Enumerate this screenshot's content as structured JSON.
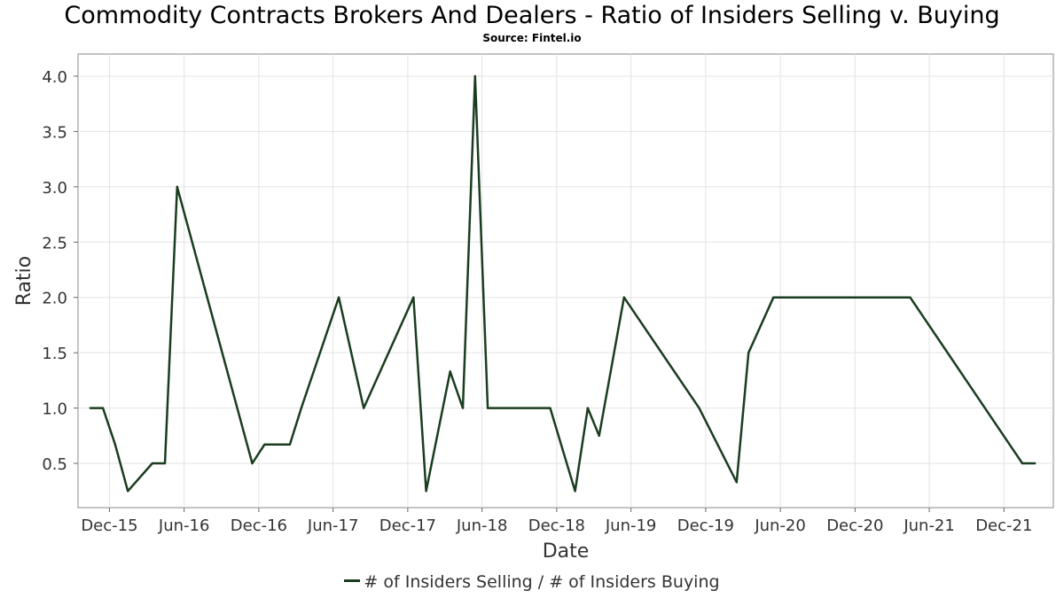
{
  "chart_data": {
    "type": "line",
    "title": "Commodity Contracts Brokers And Dealers - Ratio of Insiders Selling v. Buying",
    "subtitle": "Source: Fintel.io",
    "xlabel": "Date",
    "ylabel": "Ratio",
    "x_tick_labels": [
      "Dec-15",
      "Jun-16",
      "Dec-16",
      "Jun-17",
      "Dec-17",
      "Jun-18",
      "Dec-18",
      "Jun-19",
      "Dec-19",
      "Jun-20",
      "Dec-20",
      "Jun-21",
      "Dec-21"
    ],
    "y_tick_labels": [
      "0.5",
      "1.0",
      "1.5",
      "2.0",
      "2.5",
      "3.0",
      "3.5",
      "4.0"
    ],
    "y_ticks": [
      0.5,
      1.0,
      1.5,
      2.0,
      2.5,
      3.0,
      3.5,
      4.0
    ],
    "ylim": [
      0.1,
      4.2
    ],
    "xlim": [
      "2015-09-15",
      "2022-04-01"
    ],
    "grid": true,
    "legend_position": "bottom-center",
    "series": [
      {
        "name": "# of Insiders Selling / # of Insiders Buying",
        "color": "#1a3d1f",
        "points": [
          {
            "x": "2015-10-15",
            "y": 1.0
          },
          {
            "x": "2015-11-15",
            "y": 1.0
          },
          {
            "x": "2015-12-15",
            "y": 0.67
          },
          {
            "x": "2016-01-15",
            "y": 0.25
          },
          {
            "x": "2016-03-15",
            "y": 0.5
          },
          {
            "x": "2016-04-15",
            "y": 0.5
          },
          {
            "x": "2016-05-15",
            "y": 3.0
          },
          {
            "x": "2016-11-15",
            "y": 0.5
          },
          {
            "x": "2016-12-15",
            "y": 0.67
          },
          {
            "x": "2017-02-15",
            "y": 0.67
          },
          {
            "x": "2017-03-15",
            "y": 1.0
          },
          {
            "x": "2017-06-15",
            "y": 2.0
          },
          {
            "x": "2017-08-15",
            "y": 1.0
          },
          {
            "x": "2017-12-15",
            "y": 2.0
          },
          {
            "x": "2018-01-15",
            "y": 0.25
          },
          {
            "x": "2018-03-15",
            "y": 1.33
          },
          {
            "x": "2018-04-15",
            "y": 1.0
          },
          {
            "x": "2018-05-15",
            "y": 4.0
          },
          {
            "x": "2018-06-15",
            "y": 1.0
          },
          {
            "x": "2018-11-15",
            "y": 1.0
          },
          {
            "x": "2019-01-15",
            "y": 0.25
          },
          {
            "x": "2019-02-15",
            "y": 1.0
          },
          {
            "x": "2019-03-15",
            "y": 0.75
          },
          {
            "x": "2019-05-15",
            "y": 2.0
          },
          {
            "x": "2019-11-15",
            "y": 1.0
          },
          {
            "x": "2020-02-15",
            "y": 0.33
          },
          {
            "x": "2020-03-15",
            "y": 1.5
          },
          {
            "x": "2020-05-15",
            "y": 2.0
          },
          {
            "x": "2021-04-15",
            "y": 2.0
          },
          {
            "x": "2022-01-15",
            "y": 0.5
          },
          {
            "x": "2022-02-15",
            "y": 0.5
          }
        ]
      }
    ]
  }
}
